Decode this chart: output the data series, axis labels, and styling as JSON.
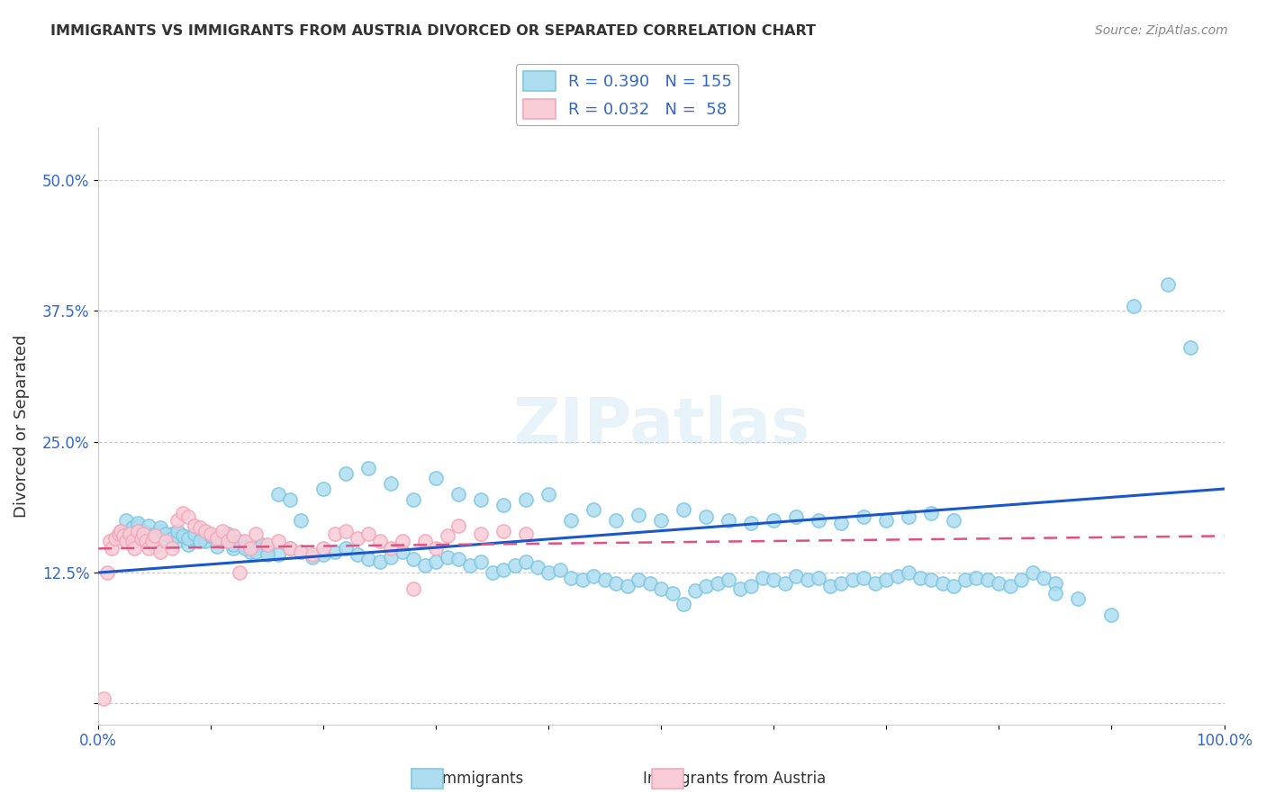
{
  "title": "IMMIGRANTS VS IMMIGRANTS FROM AUSTRIA DIVORCED OR SEPARATED CORRELATION CHART",
  "source": "Source: ZipAtlas.com",
  "xlabel": "",
  "ylabel": "Divorced or Separated",
  "xlim": [
    0.0,
    1.0
  ],
  "ylim": [
    -0.02,
    0.55
  ],
  "yticks": [
    0.0,
    0.125,
    0.25,
    0.375,
    0.5
  ],
  "ytick_labels": [
    "",
    "12.5%",
    "25.0%",
    "37.5%",
    "50.0%"
  ],
  "xticks": [
    0.0,
    0.1,
    0.2,
    0.3,
    0.4,
    0.5,
    0.6,
    0.7,
    0.8,
    0.9,
    1.0
  ],
  "xtick_labels": [
    "0.0%",
    "",
    "",
    "",
    "",
    "",
    "",
    "",
    "",
    "",
    "100.0%"
  ],
  "blue_color": "#7ec8e3",
  "blue_fill": "#aeddf0",
  "pink_color": "#f4a7b9",
  "pink_fill": "#f9cdd8",
  "line_blue": "#1a56cc",
  "line_pink": "#e05080",
  "legend_text_color": "#3366cc",
  "R1": 0.39,
  "N1": 155,
  "R2": 0.032,
  "N2": 58,
  "watermark": "ZIPatlas",
  "grid_color": "#cccccc",
  "background_color": "#ffffff",
  "blue_scatter_x": [
    0.02,
    0.025,
    0.03,
    0.035,
    0.04,
    0.045,
    0.05,
    0.055,
    0.06,
    0.065,
    0.07,
    0.075,
    0.08,
    0.085,
    0.09,
    0.095,
    0.1,
    0.105,
    0.11,
    0.115,
    0.12,
    0.125,
    0.13,
    0.135,
    0.14,
    0.145,
    0.15,
    0.16,
    0.17,
    0.18,
    0.19,
    0.2,
    0.21,
    0.22,
    0.23,
    0.24,
    0.25,
    0.26,
    0.27,
    0.28,
    0.29,
    0.3,
    0.31,
    0.32,
    0.33,
    0.34,
    0.35,
    0.36,
    0.37,
    0.38,
    0.39,
    0.4,
    0.41,
    0.42,
    0.43,
    0.44,
    0.45,
    0.46,
    0.47,
    0.48,
    0.49,
    0.5,
    0.51,
    0.52,
    0.53,
    0.54,
    0.55,
    0.56,
    0.57,
    0.58,
    0.59,
    0.6,
    0.61,
    0.62,
    0.63,
    0.64,
    0.65,
    0.66,
    0.67,
    0.68,
    0.69,
    0.7,
    0.71,
    0.72,
    0.73,
    0.74,
    0.75,
    0.76,
    0.77,
    0.78,
    0.79,
    0.8,
    0.81,
    0.82,
    0.83,
    0.84,
    0.85,
    0.87,
    0.9,
    0.92,
    0.025,
    0.03,
    0.035,
    0.04,
    0.045,
    0.05,
    0.055,
    0.06,
    0.065,
    0.07,
    0.075,
    0.08,
    0.085,
    0.09,
    0.1,
    0.11,
    0.12,
    0.13,
    0.14,
    0.15,
    0.16,
    0.17,
    0.18,
    0.2,
    0.22,
    0.24,
    0.26,
    0.28,
    0.3,
    0.32,
    0.34,
    0.36,
    0.38,
    0.4,
    0.42,
    0.44,
    0.46,
    0.48,
    0.5,
    0.52,
    0.54,
    0.56,
    0.58,
    0.6,
    0.62,
    0.64,
    0.66,
    0.68,
    0.7,
    0.72,
    0.74,
    0.76,
    0.85,
    0.95,
    0.97
  ],
  "blue_scatter_y": [
    0.165,
    0.155,
    0.16,
    0.17,
    0.155,
    0.16,
    0.15,
    0.165,
    0.158,
    0.162,
    0.155,
    0.16,
    0.152,
    0.158,
    0.165,
    0.155,
    0.16,
    0.15,
    0.155,
    0.162,
    0.148,
    0.155,
    0.15,
    0.145,
    0.148,
    0.152,
    0.145,
    0.142,
    0.148,
    0.145,
    0.14,
    0.142,
    0.145,
    0.148,
    0.142,
    0.138,
    0.135,
    0.14,
    0.145,
    0.138,
    0.132,
    0.135,
    0.14,
    0.138,
    0.132,
    0.135,
    0.125,
    0.128,
    0.132,
    0.135,
    0.13,
    0.125,
    0.128,
    0.12,
    0.118,
    0.122,
    0.118,
    0.115,
    0.112,
    0.118,
    0.115,
    0.11,
    0.105,
    0.095,
    0.108,
    0.112,
    0.115,
    0.118,
    0.11,
    0.112,
    0.12,
    0.118,
    0.115,
    0.122,
    0.118,
    0.12,
    0.112,
    0.115,
    0.118,
    0.12,
    0.115,
    0.118,
    0.122,
    0.125,
    0.12,
    0.118,
    0.115,
    0.112,
    0.118,
    0.12,
    0.118,
    0.115,
    0.112,
    0.118,
    0.125,
    0.12,
    0.115,
    0.1,
    0.085,
    0.38,
    0.175,
    0.168,
    0.172,
    0.165,
    0.17,
    0.162,
    0.168,
    0.162,
    0.158,
    0.165,
    0.16,
    0.158,
    0.162,
    0.155,
    0.16,
    0.155,
    0.152,
    0.148,
    0.145,
    0.142,
    0.2,
    0.195,
    0.175,
    0.205,
    0.22,
    0.225,
    0.21,
    0.195,
    0.215,
    0.2,
    0.195,
    0.19,
    0.195,
    0.2,
    0.175,
    0.185,
    0.175,
    0.18,
    0.175,
    0.185,
    0.178,
    0.175,
    0.172,
    0.175,
    0.178,
    0.175,
    0.172,
    0.178,
    0.175,
    0.178,
    0.182,
    0.175,
    0.105,
    0.4,
    0.34
  ],
  "pink_scatter_x": [
    0.005,
    0.008,
    0.01,
    0.012,
    0.015,
    0.018,
    0.02,
    0.022,
    0.025,
    0.028,
    0.03,
    0.032,
    0.035,
    0.038,
    0.04,
    0.042,
    0.045,
    0.048,
    0.05,
    0.055,
    0.06,
    0.065,
    0.07,
    0.075,
    0.08,
    0.085,
    0.09,
    0.095,
    0.1,
    0.105,
    0.11,
    0.115,
    0.12,
    0.125,
    0.13,
    0.135,
    0.14,
    0.15,
    0.16,
    0.17,
    0.18,
    0.19,
    0.2,
    0.21,
    0.22,
    0.23,
    0.24,
    0.25,
    0.26,
    0.27,
    0.28,
    0.29,
    0.3,
    0.31,
    0.32,
    0.34,
    0.36,
    0.38
  ],
  "pink_scatter_y": [
    0.005,
    0.125,
    0.155,
    0.148,
    0.158,
    0.162,
    0.165,
    0.16,
    0.155,
    0.162,
    0.155,
    0.148,
    0.165,
    0.158,
    0.162,
    0.155,
    0.148,
    0.155,
    0.16,
    0.145,
    0.155,
    0.148,
    0.175,
    0.182,
    0.178,
    0.17,
    0.168,
    0.165,
    0.162,
    0.158,
    0.165,
    0.155,
    0.16,
    0.125,
    0.155,
    0.148,
    0.162,
    0.152,
    0.155,
    0.148,
    0.145,
    0.142,
    0.148,
    0.162,
    0.165,
    0.158,
    0.162,
    0.155,
    0.148,
    0.155,
    0.11,
    0.155,
    0.148,
    0.16,
    0.17,
    0.162,
    0.165,
    0.162
  ]
}
